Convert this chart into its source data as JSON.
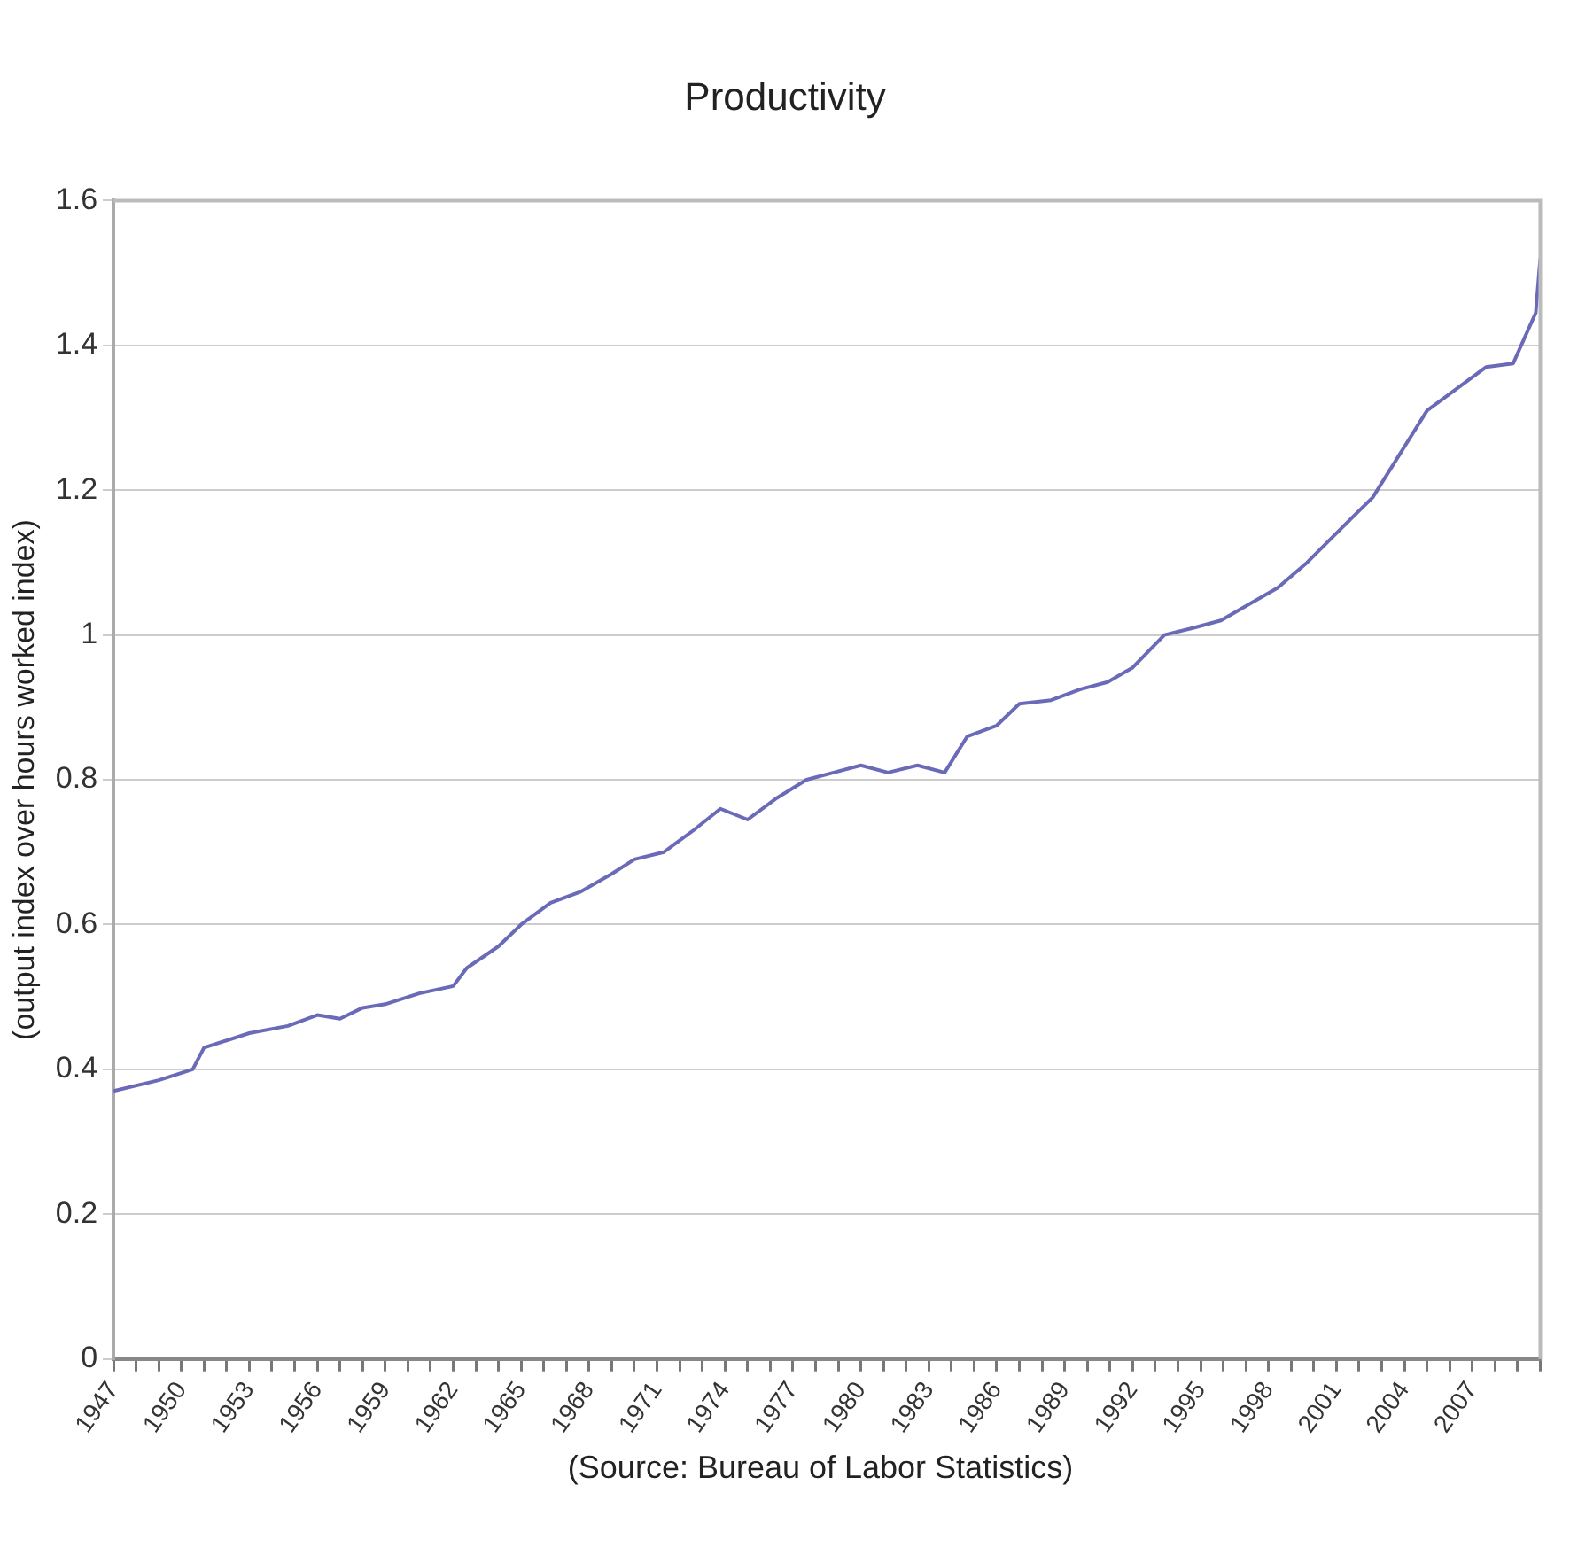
{
  "chart_data": {
    "type": "line",
    "title": "Productivity",
    "ylabel": "(output index over hours worked index)",
    "annotations": [
      "(Source: Bureau of Labor Statistics)"
    ],
    "x": [
      1947,
      1949,
      1950.5,
      1951,
      1953,
      1954.7,
      1956,
      1957,
      1958,
      1959,
      1960.5,
      1962,
      1962.6,
      1964,
      1965,
      1966.3,
      1967.6,
      1969,
      1970,
      1971.3,
      1972.6,
      1973.8,
      1975,
      1976.3,
      1977.6,
      1978.8,
      1980,
      1981.2,
      1982.5,
      1983.7,
      1984.7,
      1986,
      1987,
      1988.4,
      1989.7,
      1990.9,
      1992,
      1993.4,
      1994.7,
      1995.9,
      1997,
      1998.4,
      1999.7,
      2001.3,
      2002.6,
      2003.8,
      2005,
      2006.3,
      2007.6,
      2008.8,
      2009.3,
      2009.8,
      2010
    ],
    "series": [
      {
        "color": "#6a6ab8",
        "values": [
          0.37,
          0.385,
          0.4,
          0.43,
          0.45,
          0.46,
          0.475,
          0.47,
          0.485,
          0.49,
          0.505,
          0.515,
          0.54,
          0.57,
          0.6,
          0.63,
          0.645,
          0.67,
          0.69,
          0.7,
          0.73,
          0.76,
          0.745,
          0.775,
          0.8,
          0.81,
          0.82,
          0.81,
          0.82,
          0.81,
          0.86,
          0.875,
          0.905,
          0.91,
          0.925,
          0.935,
          0.955,
          1.0,
          1.01,
          1.02,
          1.04,
          1.065,
          1.1,
          1.15,
          1.19,
          1.25,
          1.31,
          1.34,
          1.37,
          1.375,
          1.41,
          1.445,
          1.52
        ]
      }
    ],
    "xlim": [
      1947,
      2010
    ],
    "xticks": [
      1947,
      {
        "value": 1948,
        "label": null
      },
      {
        "value": 1949,
        "label": null
      },
      1950,
      {
        "value": 1951,
        "label": null
      },
      {
        "value": 1952,
        "label": null
      },
      1953,
      {
        "value": 1954,
        "label": null
      },
      {
        "value": 1955,
        "label": null
      },
      1956,
      {
        "value": 1957,
        "label": null
      },
      {
        "value": 1958,
        "label": null
      },
      1959,
      {
        "value": 1960,
        "label": null
      },
      {
        "value": 1961,
        "label": null
      },
      1962,
      {
        "value": 1963,
        "label": null
      },
      {
        "value": 1964,
        "label": null
      },
      1965,
      {
        "value": 1966,
        "label": null
      },
      {
        "value": 1967,
        "label": null
      },
      1968,
      {
        "value": 1969,
        "label": null
      },
      {
        "value": 1970,
        "label": null
      },
      1971,
      {
        "value": 1972,
        "label": null
      },
      {
        "value": 1973,
        "label": null
      },
      1974,
      {
        "value": 1975,
        "label": null
      },
      {
        "value": 1976,
        "label": null
      },
      1977,
      {
        "value": 1978,
        "label": null
      },
      {
        "value": 1979,
        "label": null
      },
      1980,
      {
        "value": 1981,
        "label": null
      },
      {
        "value": 1982,
        "label": null
      },
      1983,
      {
        "value": 1984,
        "label": null
      },
      {
        "value": 1985,
        "label": null
      },
      1986,
      {
        "value": 1987,
        "label": null
      },
      {
        "value": 1988,
        "label": null
      },
      1989,
      {
        "value": 1990,
        "label": null
      },
      {
        "value": 1991,
        "label": null
      },
      1992,
      {
        "value": 1993,
        "label": null
      },
      {
        "value": 1994,
        "label": null
      },
      1995,
      {
        "value": 1996,
        "label": null
      },
      {
        "value": 1997,
        "label": null
      },
      1998,
      {
        "value": 1999,
        "label": null
      },
      {
        "value": 2000,
        "label": null
      },
      2001,
      {
        "value": 2002,
        "label": null
      },
      {
        "value": 2003,
        "label": null
      },
      2004,
      {
        "value": 2005,
        "label": null
      },
      {
        "value": 2006,
        "label": null
      },
      2007,
      {
        "value": 2008,
        "label": null
      },
      {
        "value": 2009,
        "label": null
      },
      {
        "value": 2010,
        "label": null
      }
    ],
    "ylim": [
      0,
      1.6
    ],
    "yticks": [
      0,
      0.2,
      0.4,
      0.6,
      0.8,
      1,
      1.2,
      1.4,
      1.6
    ],
    "grid": "y",
    "legend": false,
    "marker": "none",
    "line_style": "solid"
  }
}
